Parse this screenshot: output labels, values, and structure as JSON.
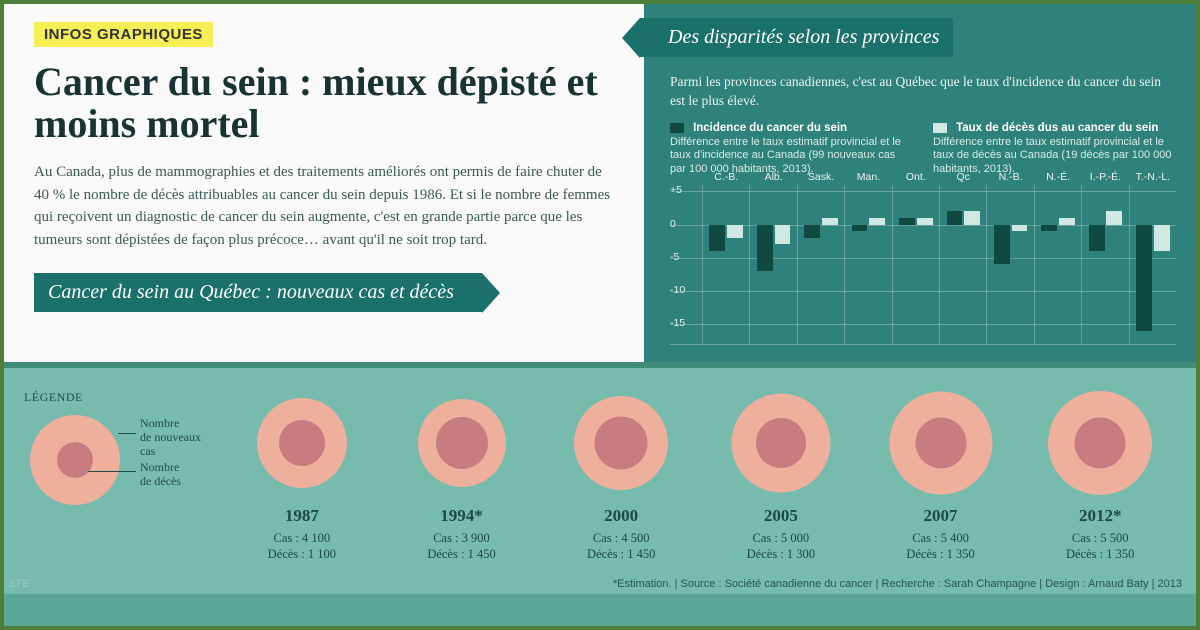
{
  "badge": "INFOS GRAPHIQUES",
  "headline": "Cancer du sein : mieux dépisté et moins mortel",
  "intro": "Au Canada, plus de mammographies et des traitements améliorés ont permis de faire chuter de 40 % le nombre de décès attribuables au cancer du sein depuis 1986. Et si le nombre de femmes qui reçoivent un diagnostic de cancer du sein augmente, c'est en grande partie parce que les tumeurs sont dépistées de façon plus précoce… avant qu'il ne soit trop tard.",
  "ribbon_left": "Cancer du sein au Québec : nouveaux cas et décès",
  "ribbon_right": "Des disparités selon les provinces",
  "right_intro": "Parmi les provinces canadiennes, c'est au Québec que le taux d'incidence du cancer du sein est le plus élevé.",
  "legend": {
    "a": {
      "title": "Incidence du cancer du sein",
      "sub": "Différence entre le taux estimatif provincial et le taux d'incidence au Canada (99 nouveaux cas par 100 000 habitants, 2013).",
      "color": "#0e4a3f"
    },
    "b": {
      "title": "Taux de décès dus au cancer du sein",
      "sub": "Différence entre le taux estimatif provincial et le taux de décès au Canada (19 décès par 100 000 habitants, 2013).",
      "color": "#cfe8e2"
    }
  },
  "chart": {
    "ymin": -18,
    "ymax": 6,
    "yticks": [
      5,
      0,
      -5,
      -10,
      -15
    ],
    "ylabels": [
      "+5",
      "0",
      "-5",
      "-10",
      "-15"
    ],
    "provinces": [
      "C.-B.",
      "Alb.",
      "Sask.",
      "Man.",
      "Ont.",
      "Qc",
      "N.-B.",
      "N.-É.",
      "I.-P.-É.",
      "T.-N.-L."
    ],
    "dark": [
      -4,
      -7,
      -2,
      -1,
      1,
      2,
      -6,
      -1,
      -4,
      -16
    ],
    "light": [
      -2,
      -3,
      1,
      1,
      1,
      2,
      -1,
      1,
      2,
      -4
    ]
  },
  "circle_legend": {
    "title": "LÉGENDE",
    "outer_label": "Nombre\nde nouveaux\ncas",
    "inner_label": "Nombre\nde décès"
  },
  "circle_colors": {
    "outer": "#efaf9d",
    "inner": "#c77d7f"
  },
  "years": [
    {
      "year": "1987",
      "cases": 4100,
      "deaths": 1100,
      "outer": 90,
      "inner": 46
    },
    {
      "year": "1994*",
      "cases": 3900,
      "deaths": 1450,
      "outer": 88,
      "inner": 52
    },
    {
      "year": "2000",
      "cases": 4500,
      "deaths": 1450,
      "outer": 94,
      "inner": 53
    },
    {
      "year": "2005",
      "cases": 5000,
      "deaths": 1300,
      "outer": 99,
      "inner": 50
    },
    {
      "year": "2007",
      "cases": 5400,
      "deaths": 1350,
      "outer": 103,
      "inner": 51
    },
    {
      "year": "2012*",
      "cases": 5500,
      "deaths": 1350,
      "outer": 104,
      "inner": 51
    }
  ],
  "cases_prefix": "Cas : ",
  "deaths_prefix": "Décès : ",
  "footnote": "*Estimation. | Source : Société canadienne du cancer | Recherche : Sarah Champagne | Design : Arnaud Baty | 2013",
  "corner": "37E"
}
